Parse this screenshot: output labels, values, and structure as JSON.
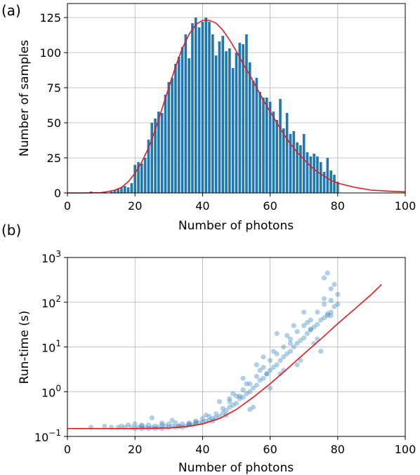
{
  "chart_data": [
    {
      "type": "bar",
      "panel_label": "(a)",
      "xlabel": "Number of photons",
      "ylabel": "Number of samples",
      "xlim": [
        0,
        100
      ],
      "ylim": [
        0,
        135
      ],
      "xticks": [
        0,
        20,
        40,
        60,
        80,
        100
      ],
      "xtick_labels": [
        "0",
        "20",
        "40",
        "60",
        "80",
        "100"
      ],
      "yticks": [
        0,
        25,
        50,
        75,
        100,
        125
      ],
      "ytick_labels": [
        "0",
        "25",
        "50",
        "75",
        "100",
        "125"
      ],
      "grid": true,
      "bar_color": "#1f77b4",
      "fit_color": "#e41a1c",
      "bins": {
        "x": [
          7,
          8,
          9,
          10,
          11,
          12,
          13,
          14,
          15,
          16,
          17,
          18,
          19,
          20,
          21,
          22,
          23,
          24,
          25,
          26,
          27,
          28,
          29,
          30,
          31,
          32,
          33,
          34,
          35,
          36,
          37,
          38,
          39,
          40,
          41,
          42,
          43,
          44,
          45,
          46,
          47,
          48,
          49,
          50,
          51,
          52,
          53,
          54,
          55,
          56,
          57,
          58,
          59,
          60,
          61,
          62,
          63,
          64,
          65,
          66,
          67,
          68,
          69,
          70,
          71,
          72,
          73,
          74,
          75,
          76,
          77,
          78,
          79,
          80
        ],
        "values": [
          1,
          0,
          0,
          0,
          1,
          0,
          1,
          2,
          3,
          4,
          5,
          4,
          7,
          20,
          22,
          21,
          25,
          38,
          50,
          53,
          58,
          57,
          70,
          79,
          82,
          92,
          97,
          104,
          113,
          96,
          121,
          125,
          118,
          122,
          125,
          122,
          113,
          98,
          108,
          112,
          101,
          103,
          89,
          100,
          107,
          106,
          113,
          93,
          80,
          82,
          72,
          68,
          68,
          65,
          58,
          52,
          67,
          46,
          57,
          42,
          44,
          36,
          34,
          42,
          29,
          26,
          28,
          26,
          22,
          15,
          25,
          16,
          13,
          8
        ]
      },
      "fit": {
        "x": [
          0,
          5,
          10,
          12,
          14,
          16,
          18,
          20,
          22,
          24,
          26,
          28,
          30,
          32,
          34,
          36,
          38,
          40,
          42,
          44,
          46,
          48,
          50,
          52,
          54,
          56,
          58,
          60,
          62,
          64,
          66,
          68,
          70,
          72,
          74,
          76,
          78,
          80,
          85,
          90,
          95,
          100
        ],
        "y": [
          0,
          0,
          0.2,
          1,
          2,
          4,
          8,
          14,
          22,
          32,
          45,
          60,
          75,
          90,
          103,
          113,
          120,
          123,
          123,
          121,
          116,
          109,
          101,
          92,
          84,
          75,
          66,
          58,
          50,
          42,
          35,
          29,
          24,
          19,
          15,
          12,
          9,
          7,
          4,
          2,
          1.3,
          0.8
        ]
      }
    },
    {
      "type": "scatter",
      "panel_label": "(b)",
      "xlabel": "Number of photons",
      "ylabel": "Run-time (s)",
      "xlim": [
        0,
        100
      ],
      "ylim": [
        0.1,
        1000
      ],
      "yscale": "log",
      "xticks": [
        0,
        20,
        40,
        60,
        80,
        100
      ],
      "xtick_labels": [
        "0",
        "20",
        "40",
        "60",
        "80",
        "100"
      ],
      "yticks": [
        0.1,
        1,
        10,
        100,
        1000
      ],
      "ytick_labels": [
        {
          "base": "10",
          "exp": "−1"
        },
        {
          "base": "10",
          "exp": "0"
        },
        {
          "base": "10",
          "exp": "1"
        },
        {
          "base": "10",
          "exp": "2"
        },
        {
          "base": "10",
          "exp": "3"
        }
      ],
      "grid": true,
      "point_color": "#1f77b4",
      "fit_color": "#e41a1c",
      "fit": {
        "x": [
          0,
          10,
          20,
          30,
          35,
          40,
          45,
          50,
          55,
          60,
          65,
          70,
          75,
          80,
          85,
          90,
          93
        ],
        "y": [
          0.15,
          0.15,
          0.15,
          0.155,
          0.165,
          0.19,
          0.25,
          0.4,
          0.75,
          1.5,
          3.2,
          7,
          15,
          33,
          70,
          150,
          250
        ]
      },
      "points": {
        "x": [
          7,
          11,
          13,
          15,
          16,
          17,
          18,
          19,
          20,
          20,
          21,
          22,
          22,
          23,
          24,
          24,
          25,
          26,
          26,
          27,
          28,
          28,
          29,
          30,
          30,
          31,
          32,
          32,
          33,
          34,
          34,
          35,
          36,
          36,
          37,
          38,
          38,
          39,
          40,
          40,
          41,
          42,
          42,
          43,
          44,
          44,
          45,
          46,
          46,
          47,
          48,
          48,
          49,
          50,
          50,
          51,
          52,
          52,
          53,
          54,
          54,
          55,
          56,
          56,
          57,
          58,
          58,
          59,
          60,
          60,
          61,
          62,
          62,
          63,
          64,
          64,
          65,
          66,
          66,
          67,
          68,
          68,
          69,
          70,
          70,
          71,
          72,
          72,
          73,
          74,
          74,
          75,
          76,
          76,
          77,
          78,
          78,
          79,
          80,
          80,
          57,
          60,
          63,
          66,
          69,
          72,
          75,
          78,
          52,
          55,
          58,
          61,
          64,
          67,
          70,
          73,
          76,
          79,
          45,
          48,
          51,
          54,
          47,
          49,
          53,
          56,
          59,
          62,
          65,
          68,
          71,
          74,
          77,
          22,
          28,
          33,
          38,
          25,
          31,
          36,
          41,
          43,
          76,
          77,
          78
        ],
        "y": [
          0.16,
          0.17,
          0.16,
          0.16,
          0.17,
          0.16,
          0.18,
          0.16,
          0.15,
          0.19,
          0.16,
          0.17,
          0.15,
          0.16,
          0.18,
          0.15,
          0.16,
          0.17,
          0.15,
          0.16,
          0.18,
          0.15,
          0.17,
          0.16,
          0.19,
          0.17,
          0.16,
          0.2,
          0.17,
          0.16,
          0.19,
          0.17,
          0.18,
          0.2,
          0.18,
          0.19,
          0.22,
          0.2,
          0.21,
          0.25,
          0.22,
          0.23,
          0.28,
          0.25,
          0.26,
          0.32,
          0.28,
          0.33,
          0.42,
          0.38,
          0.45,
          0.6,
          0.5,
          0.55,
          0.8,
          0.7,
          0.75,
          1.1,
          0.9,
          1.0,
          1.5,
          1.2,
          1.4,
          2.2,
          1.8,
          2.0,
          3.5,
          2.5,
          3.0,
          5.0,
          3.5,
          4.0,
          7,
          5.0,
          6.0,
          10,
          7,
          8,
          15,
          10,
          12,
          22,
          14,
          16,
          30,
          20,
          24,
          40,
          28,
          32,
          60,
          40,
          45,
          90,
          55,
          60,
          110,
          80,
          90,
          150,
          3,
          1.2,
          2.5,
          12,
          5,
          25,
          8,
          50,
          2,
          0.45,
          6,
          8,
          3,
          30,
          60,
          12,
          120,
          250,
          0.6,
          0.7,
          0.8,
          0.4,
          0.3,
          0.9,
          1.5,
          4,
          2.5,
          20,
          18,
          4,
          35,
          15,
          50,
          0.18,
          0.2,
          0.17,
          0.21,
          0.26,
          0.23,
          0.19,
          0.3,
          0.22,
          350,
          450,
          200
        ]
      }
    }
  ]
}
